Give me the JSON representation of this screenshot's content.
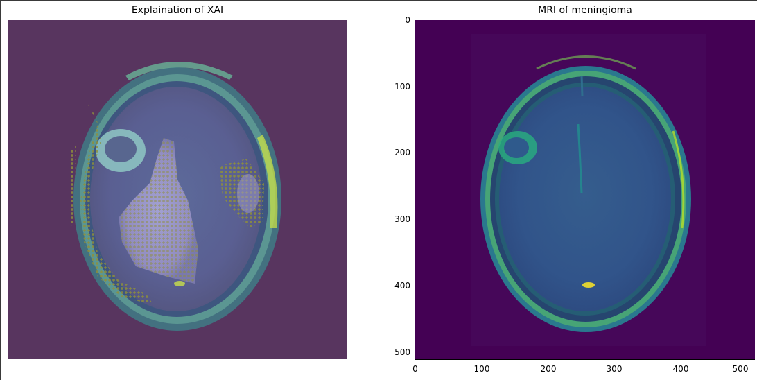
{
  "left_panel": {
    "title": "Explaination of XAI",
    "background_color": "#58355f"
  },
  "right_panel": {
    "title": "MRI of meningioma",
    "background_color": "#440154",
    "y_ticks": [
      "0",
      "100",
      "200",
      "300",
      "400",
      "500"
    ],
    "x_ticks": [
      "0",
      "100",
      "200",
      "300",
      "400",
      "500"
    ]
  },
  "colors": {
    "viridis_dark": "#440154",
    "viridis_blue": "#3b528b",
    "viridis_teal": "#21918c",
    "viridis_green": "#5ec962",
    "viridis_yellow": "#fde725",
    "overlay_olive": "#8e8f3b",
    "overlay_lavender": "#9b97c9"
  }
}
